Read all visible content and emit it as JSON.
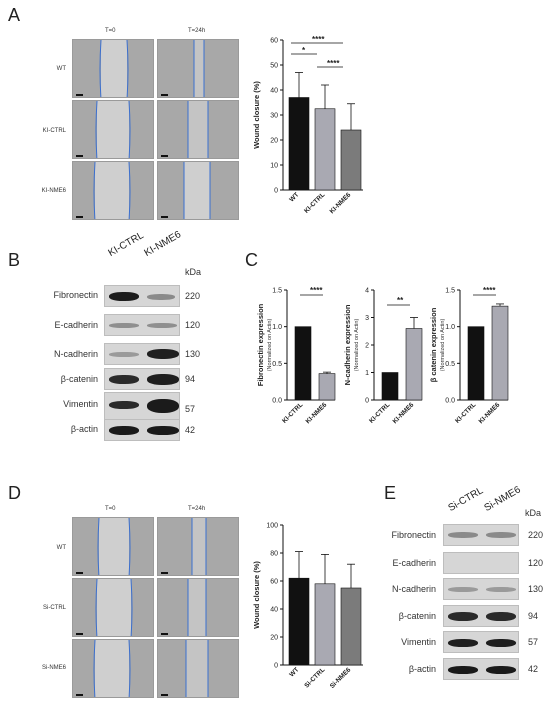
{
  "panels": {
    "A": {
      "letter": "A",
      "time_labels": [
        "T=0",
        "T=24h"
      ],
      "row_labels": [
        "WT",
        "KI-CTRL",
        "KI-NME6"
      ],
      "significance": [
        "****",
        "*",
        "****"
      ]
    },
    "B": {
      "letter": "B",
      "lanes": [
        "KI-CTRL",
        "KI-NME6"
      ],
      "kda_label": "kDa",
      "proteins": [
        "Fibronectin",
        "E-cadherin",
        "N-cadherin",
        "β-catenin",
        "Vimentin",
        "β-actin"
      ],
      "kda": [
        "220",
        "120",
        "130",
        "94",
        "57",
        "42"
      ]
    },
    "C": {
      "letter": "C",
      "significance": [
        "****",
        "**",
        "****"
      ]
    },
    "D": {
      "letter": "D",
      "time_labels": [
        "T=0",
        "T=24h"
      ],
      "row_labels": [
        "WT",
        "Si-CTRL",
        "Si-NME6"
      ]
    },
    "E": {
      "letter": "E",
      "lanes": [
        "Si-CTRL",
        "Si-NME6"
      ],
      "kda_label": "kDa",
      "proteins": [
        "Fibronectin",
        "E-cadherin",
        "N-cadherin",
        "β-catenin",
        "Vimentin",
        "β-actin"
      ],
      "kda": [
        "220",
        "120",
        "130",
        "94",
        "57",
        "42"
      ]
    }
  },
  "chart_data": [
    {
      "id": "A",
      "type": "bar",
      "categories": [
        "WT",
        "KI-CTRL",
        "KI-NME6"
      ],
      "values": [
        37,
        32.5,
        24
      ],
      "errors": [
        10,
        9.5,
        10.5
      ],
      "colors": [
        "#111111",
        "#a9a9b2",
        "#7b7b7b"
      ],
      "ylabel": "Wound closure (%)",
      "ylim": [
        0,
        60
      ],
      "yticks": [
        "0",
        "10",
        "20",
        "30",
        "40",
        "50",
        "60"
      ]
    },
    {
      "id": "C1",
      "type": "bar",
      "categories": [
        "KI-CTRL",
        "KI-NME6"
      ],
      "values": [
        1.0,
        0.36
      ],
      "errors": [
        0,
        0.02
      ],
      "colors": [
        "#111111",
        "#a9a9b2"
      ],
      "ylabel": "Fibronectin expression",
      "ylabel2": "(Normalized on Actin)",
      "ylim": [
        0,
        1.5
      ],
      "yticks": [
        "0.0",
        "0.5",
        "1.0",
        "1.5"
      ]
    },
    {
      "id": "C2",
      "type": "bar",
      "categories": [
        "KI-CTRL",
        "KI-NME6"
      ],
      "values": [
        1.0,
        2.6
      ],
      "errors": [
        0,
        0.4
      ],
      "colors": [
        "#111111",
        "#a9a9b2"
      ],
      "ylabel": "N-cadherin expression",
      "ylabel2": "(Normalized on Actin)",
      "ylim": [
        0,
        4
      ],
      "yticks": [
        "0",
        "1",
        "2",
        "3",
        "4"
      ]
    },
    {
      "id": "C3",
      "type": "bar",
      "categories": [
        "KI-CTRL",
        "KI-NME6"
      ],
      "values": [
        1.0,
        1.28
      ],
      "errors": [
        0,
        0.03
      ],
      "colors": [
        "#111111",
        "#a9a9b2"
      ],
      "ylabel": "β catenin expression",
      "ylabel2": "(Normalized on Actin)",
      "ylim": [
        0,
        1.5
      ],
      "yticks": [
        "0.0",
        "0.5",
        "1.0",
        "1.5"
      ]
    },
    {
      "id": "D",
      "type": "bar",
      "categories": [
        "WT",
        "Si-CTRL",
        "Si-NME6"
      ],
      "values": [
        62,
        58,
        55
      ],
      "errors": [
        19,
        21,
        17
      ],
      "colors": [
        "#111111",
        "#a9a9b2",
        "#7b7b7b"
      ],
      "ylabel": "Wound closure (%)",
      "ylim": [
        0,
        100
      ],
      "yticks": [
        "0",
        "20",
        "40",
        "60",
        "80",
        "100"
      ]
    }
  ]
}
